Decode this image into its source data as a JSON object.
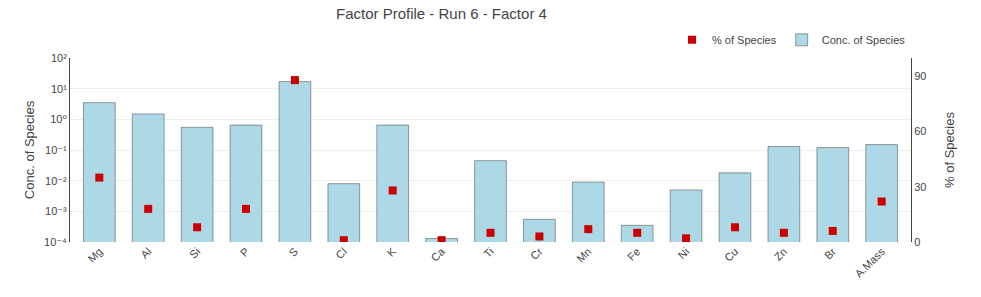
{
  "chart_data": {
    "type": "bar",
    "title": "Factor Profile - Run 6 - Factor 4",
    "ylabel": "Conc. of Species",
    "y2label": "% of Species",
    "categories": [
      "Mg",
      "Al",
      "Si",
      "P",
      "S",
      "Cl",
      "K",
      "Ca",
      "Ti",
      "Cr",
      "Mn",
      "Fe",
      "Ni",
      "Cu",
      "Zn",
      "Br",
      "A.Mass"
    ],
    "series": [
      {
        "name": "% of Species",
        "type": "scatter",
        "axis": "y2",
        "marker": "square",
        "color": "#cc0000",
        "values": [
          35,
          18,
          8,
          18,
          88,
          1,
          28,
          1,
          5,
          3,
          7,
          5,
          2,
          8,
          5,
          6,
          22
        ]
      },
      {
        "name": "Conc. of Species",
        "type": "bar",
        "color": "#add8e6",
        "values": [
          3.5,
          1.5,
          0.55,
          0.65,
          17.0,
          0.008,
          0.65,
          0.00013,
          0.045,
          0.00055,
          0.009,
          0.00035,
          0.005,
          0.018,
          0.13,
          0.12,
          0.15
        ]
      }
    ],
    "log": "y",
    "ylim": [
      0.0001,
      100
    ],
    "yticks": [
      {
        "value": 0.0001,
        "label": "10⁻⁴"
      },
      {
        "value": 0.001,
        "label": "10⁻³"
      },
      {
        "value": 0.01,
        "label": "10⁻²"
      },
      {
        "value": 0.1,
        "label": "10⁻¹"
      },
      {
        "value": 1,
        "label": "10⁰"
      },
      {
        "value": 10,
        "label": "10¹"
      },
      {
        "value": 100,
        "label": "10²"
      }
    ],
    "y2lim": [
      0,
      100
    ],
    "y2ticks": [
      0,
      30,
      60,
      90
    ],
    "grid": true,
    "legend": "upper right"
  }
}
